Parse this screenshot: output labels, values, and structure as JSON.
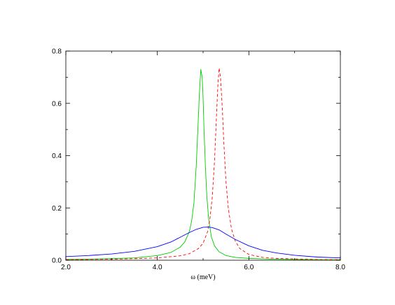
{
  "chart_data": {
    "type": "line",
    "title": "",
    "xlabel": "ω (meV)",
    "ylabel": "",
    "xlim": [
      2.0,
      8.0
    ],
    "ylim": [
      0.0,
      0.8
    ],
    "grid": false,
    "legend": "none",
    "x_ticks": [
      {
        "value": 2.0,
        "label": "2.0"
      },
      {
        "value": 4.0,
        "label": "4.0"
      },
      {
        "value": 6.0,
        "label": "6.0"
      },
      {
        "value": 8.0,
        "label": "8.0"
      }
    ],
    "x_minor_ticks": [
      3.0,
      5.0,
      7.0
    ],
    "y_ticks": [
      {
        "value": 0.0,
        "label": "0.0"
      },
      {
        "value": 0.2,
        "label": "0.2"
      },
      {
        "value": 0.4,
        "label": "0.4"
      },
      {
        "value": 0.6,
        "label": "0.6"
      },
      {
        "value": 0.8,
        "label": "0.8"
      }
    ],
    "y_minor_ticks": [
      0.1,
      0.3,
      0.5,
      0.7
    ],
    "series": [
      {
        "color": "#00cc00",
        "dash": "solid",
        "x": [
          2.0,
          2.5,
          3.0,
          3.5,
          4.0,
          4.3,
          4.5,
          4.6,
          4.7,
          4.75,
          4.8,
          4.85,
          4.88,
          4.92,
          4.95,
          4.98,
          5.0,
          5.02,
          5.05,
          5.08,
          5.12,
          5.18,
          5.25,
          5.35,
          5.5,
          5.7,
          6.0,
          6.5,
          7.0,
          7.5,
          8.0
        ],
        "y": [
          0.003,
          0.004,
          0.006,
          0.009,
          0.018,
          0.03,
          0.05,
          0.07,
          0.11,
          0.15,
          0.22,
          0.36,
          0.48,
          0.64,
          0.73,
          0.7,
          0.62,
          0.5,
          0.36,
          0.25,
          0.16,
          0.09,
          0.055,
          0.032,
          0.018,
          0.011,
          0.007,
          0.004,
          0.003,
          0.002,
          0.002
        ]
      },
      {
        "color": "#ff0000",
        "dash": "dashed",
        "x": [
          2.0,
          2.5,
          3.0,
          3.5,
          4.0,
          4.5,
          4.7,
          4.9,
          5.0,
          5.1,
          5.15,
          5.2,
          5.25,
          5.28,
          5.32,
          5.35,
          5.38,
          5.42,
          5.45,
          5.5,
          5.55,
          5.62,
          5.7,
          5.8,
          6.0,
          6.3,
          6.6,
          7.0,
          7.5,
          8.0
        ],
        "y": [
          0.002,
          0.003,
          0.004,
          0.006,
          0.009,
          0.017,
          0.025,
          0.045,
          0.065,
          0.11,
          0.16,
          0.24,
          0.38,
          0.5,
          0.66,
          0.735,
          0.7,
          0.58,
          0.46,
          0.3,
          0.2,
          0.12,
          0.075,
          0.045,
          0.022,
          0.011,
          0.007,
          0.005,
          0.003,
          0.002
        ]
      },
      {
        "color": "#0000ff",
        "dash": "solid",
        "x": [
          2.0,
          2.5,
          3.0,
          3.5,
          4.0,
          4.3,
          4.5,
          4.7,
          4.85,
          5.0,
          5.1,
          5.2,
          5.35,
          5.5,
          5.7,
          6.0,
          6.3,
          6.6,
          7.0,
          7.5,
          8.0
        ],
        "y": [
          0.014,
          0.018,
          0.024,
          0.034,
          0.052,
          0.07,
          0.088,
          0.106,
          0.118,
          0.126,
          0.127,
          0.125,
          0.116,
          0.1,
          0.08,
          0.055,
          0.038,
          0.028,
          0.019,
          0.012,
          0.009
        ]
      }
    ]
  }
}
